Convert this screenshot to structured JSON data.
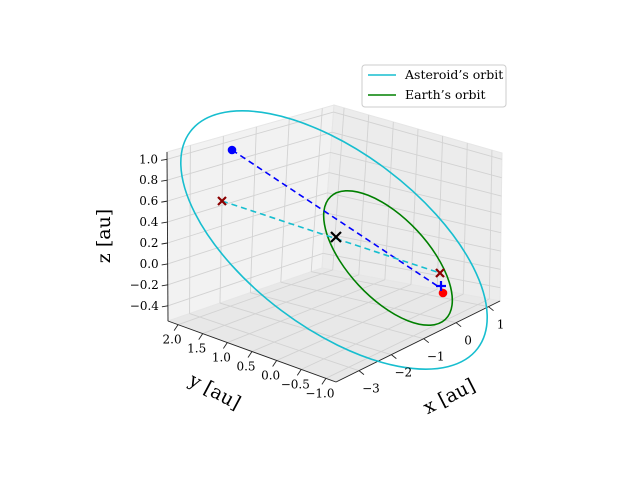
{
  "chart_data": {
    "type": "line",
    "projection": "3d",
    "legend_placement": "top-right",
    "grid": true,
    "xlabel": "x [au]",
    "ylabel": "y [au]",
    "zlabel": "z [au]",
    "x_ticks": [
      "−3",
      "−2",
      "−1",
      "0",
      "1"
    ],
    "y_ticks": [
      "2.0",
      "1.5",
      "1.0",
      "0.5",
      "0.0",
      "−0.5",
      "−1.0"
    ],
    "z_ticks": [
      "1.0",
      "0.8",
      "0.6",
      "0.4",
      "0.2",
      "0.0",
      "−0.2",
      "−0.4"
    ],
    "series": [
      {
        "name": "Asteroid’s orbit",
        "color": "#17becf",
        "style": "solid"
      },
      {
        "name": "Earth’s orbit",
        "color": "#008000",
        "style": "solid"
      }
    ],
    "markers": [
      {
        "symbol": "circle",
        "color": "#0000ff"
      },
      {
        "symbol": "circle",
        "color": "#ff0000"
      },
      {
        "symbol": "x",
        "color": "#000000"
      },
      {
        "symbol": "x",
        "color": "#8b0000"
      },
      {
        "symbol": "x",
        "color": "#8b0000"
      },
      {
        "symbol": "plus",
        "color": "#0000ff"
      }
    ],
    "connectors": [
      {
        "color": "#0000ff",
        "style": "dashed"
      },
      {
        "color": "#17becf",
        "style": "dashed"
      }
    ]
  }
}
